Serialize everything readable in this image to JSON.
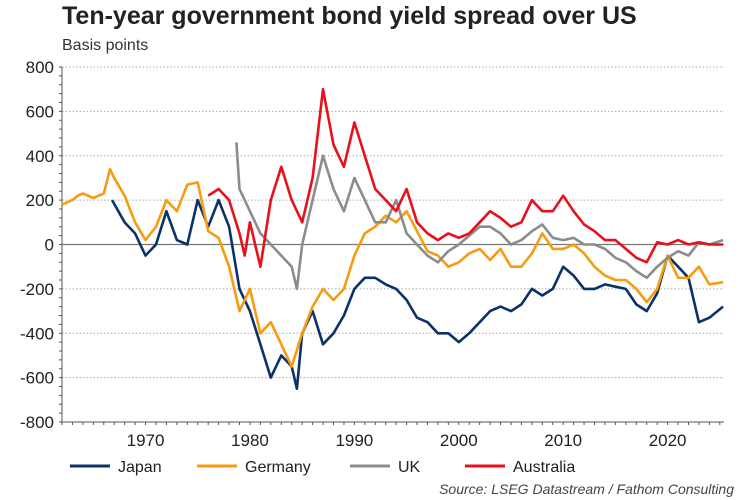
{
  "chart_data": {
    "type": "line",
    "title": "Ten-year government bond yield spread over US",
    "ylabel": "Basis points",
    "xlabel": "",
    "source": "Source: LSEG Datastream / Fathom Consulting",
    "xlim": [
      1962,
      2025.4
    ],
    "ylim": [
      -800,
      800
    ],
    "yticks": [
      -800,
      -600,
      -400,
      -200,
      0,
      200,
      400,
      600,
      800
    ],
    "xticks": [
      1970,
      1980,
      1990,
      2000,
      2010,
      2020
    ],
    "grid": "horizontal-dotted",
    "legend_position": "bottom",
    "series": [
      {
        "name": "Japan",
        "color": "#0b3268",
        "x": [
          1966.8,
          1968,
          1969,
          1970,
          1971,
          1972,
          1973,
          1974,
          1975,
          1976,
          1977,
          1978,
          1979,
          1980,
          1981,
          1982,
          1983,
          1984,
          1984.5,
          1985,
          1986,
          1987,
          1988,
          1989,
          1990,
          1991,
          1992,
          1993,
          1994,
          1995,
          1996,
          1997,
          1998,
          1999,
          2000,
          2001,
          2002,
          2003,
          2004,
          2005,
          2006,
          2007,
          2008,
          2009,
          2010,
          2011,
          2012,
          2013,
          2014,
          2015,
          2016,
          2017,
          2018,
          2019,
          2020,
          2021,
          2022,
          2023,
          2024,
          2025.3
        ],
        "y": [
          200,
          100,
          50,
          -50,
          0,
          150,
          20,
          0,
          200,
          80,
          200,
          80,
          -200,
          -300,
          -450,
          -600,
          -500,
          -550,
          -650,
          -400,
          -300,
          -450,
          -400,
          -320,
          -200,
          -150,
          -150,
          -180,
          -200,
          -250,
          -330,
          -350,
          -400,
          -400,
          -440,
          -400,
          -350,
          -300,
          -280,
          -300,
          -270,
          -200,
          -230,
          -200,
          -100,
          -140,
          -200,
          -200,
          -180,
          -190,
          -200,
          -270,
          -300,
          -220,
          -50,
          -100,
          -150,
          -350,
          -330,
          -280
        ]
      },
      {
        "name": "Germany",
        "color": "#f59c10",
        "x": [
          1962,
          1963,
          1963.5,
          1964,
          1965,
          1966,
          1966.6,
          1967,
          1968,
          1969,
          1970,
          1971,
          1972,
          1973,
          1974,
          1975,
          1976,
          1977,
          1978,
          1979,
          1980,
          1981,
          1982,
          1983,
          1984,
          1985,
          1986,
          1987,
          1988,
          1989,
          1990,
          1991,
          1992,
          1993,
          1994,
          1995,
          1996,
          1997,
          1998,
          1999,
          2000,
          2001,
          2002,
          2003,
          2004,
          2005,
          2006,
          2007,
          2008,
          2009,
          2010,
          2011,
          2012,
          2013,
          2014,
          2015,
          2016,
          2017,
          2018,
          2019,
          2020,
          2021,
          2022,
          2023,
          2024,
          2025.3
        ],
        "y": [
          180,
          200,
          220,
          230,
          210,
          230,
          340,
          300,
          220,
          100,
          20,
          80,
          200,
          150,
          270,
          280,
          60,
          30,
          -100,
          -300,
          -200,
          -400,
          -350,
          -450,
          -550,
          -400,
          -280,
          -200,
          -250,
          -200,
          -50,
          50,
          80,
          130,
          100,
          150,
          60,
          -30,
          -50,
          -100,
          -80,
          -40,
          -20,
          -70,
          -20,
          -100,
          -100,
          -40,
          50,
          -20,
          -20,
          0,
          -40,
          -100,
          -140,
          -160,
          -160,
          -200,
          -260,
          -200,
          -50,
          -150,
          -150,
          -100,
          -180,
          -170
        ]
      },
      {
        "name": "UK",
        "color": "#8c8c8c",
        "x": [
          1978.7,
          1979,
          1980,
          1981,
          1982,
          1983,
          1984,
          1984.5,
          1985,
          1986,
          1987,
          1988,
          1989,
          1990,
          1991,
          1992,
          1993,
          1994,
          1995,
          1996,
          1997,
          1998,
          1999,
          2000,
          2001,
          2002,
          2003,
          2004,
          2005,
          2006,
          2007,
          2008,
          2009,
          2010,
          2011,
          2012,
          2013,
          2014,
          2015,
          2016,
          2017,
          2018,
          2019,
          2020,
          2021,
          2022,
          2023,
          2024,
          2025.3
        ],
        "y": [
          460,
          250,
          150,
          50,
          0,
          -50,
          -100,
          -200,
          0,
          200,
          400,
          250,
          150,
          300,
          200,
          100,
          100,
          200,
          50,
          0,
          -50,
          -80,
          -30,
          0,
          40,
          80,
          80,
          50,
          0,
          20,
          60,
          90,
          30,
          20,
          30,
          0,
          0,
          -20,
          -60,
          -80,
          -120,
          -150,
          -100,
          -60,
          -30,
          -50,
          10,
          0,
          20
        ]
      },
      {
        "name": "Australia",
        "color": "#e8101a",
        "x": [
          1976,
          1977,
          1978,
          1979,
          1979.5,
          1980,
          1981,
          1982,
          1983,
          1984,
          1985,
          1986,
          1987,
          1988,
          1989,
          1990,
          1991,
          1992,
          1993,
          1994,
          1995,
          1996,
          1997,
          1998,
          1999,
          2000,
          2001,
          2002,
          2003,
          2004,
          2005,
          2006,
          2007,
          2008,
          2009,
          2010,
          2011,
          2012,
          2013,
          2014,
          2015,
          2016,
          2017,
          2018,
          2019,
          2020,
          2021,
          2022,
          2023,
          2024,
          2025.3
        ],
        "y": [
          220,
          250,
          200,
          50,
          -50,
          100,
          -100,
          200,
          350,
          200,
          100,
          300,
          700,
          450,
          350,
          550,
          400,
          250,
          200,
          150,
          250,
          100,
          50,
          20,
          50,
          30,
          50,
          100,
          150,
          120,
          80,
          100,
          200,
          150,
          150,
          220,
          150,
          90,
          60,
          20,
          20,
          -20,
          -60,
          -80,
          10,
          0,
          20,
          0,
          10,
          0,
          0
        ]
      }
    ]
  }
}
